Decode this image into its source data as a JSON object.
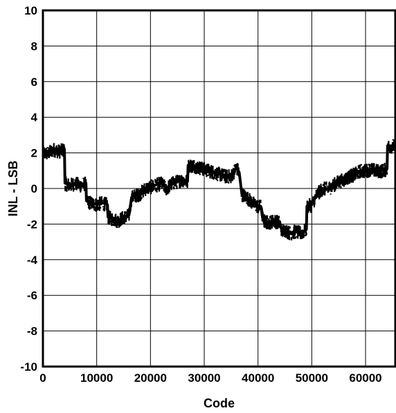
{
  "chart_data": {
    "type": "line",
    "title": "",
    "xlabel": "Code",
    "ylabel": "INL - LSB",
    "xlim": [
      0,
      65535
    ],
    "ylim": [
      -10,
      10
    ],
    "grid": true,
    "x_ticks": [
      0,
      10000,
      20000,
      30000,
      40000,
      50000,
      60000
    ],
    "x_tick_labels": [
      "0",
      "10000",
      "20000",
      "30000",
      "40000",
      "50000",
      "60000"
    ],
    "y_ticks": [
      -10,
      -8,
      -6,
      -4,
      -2,
      0,
      2,
      4,
      6,
      8,
      10
    ],
    "y_tick_labels": [
      "-10",
      "-8",
      "-6",
      "-4",
      "-2",
      "0",
      "2",
      "4",
      "6",
      "8",
      "10"
    ],
    "series": [
      {
        "band_halfwidth": 0.4,
        "x": [
          0,
          1000,
          2000,
          3000,
          4000,
          4100,
          5000,
          6000,
          7000,
          8000,
          8100,
          9000,
          10000,
          11000,
          12000,
          12100,
          13000,
          14000,
          15000,
          16000,
          16500,
          17000,
          18000,
          19000,
          20000,
          21000,
          22000,
          23000,
          24000,
          25000,
          26000,
          26900,
          27000,
          28000,
          29000,
          30000,
          31000,
          32000,
          33000,
          34000,
          35000,
          36000,
          36500,
          37000,
          38000,
          39000,
          40000,
          40500,
          41000,
          42000,
          43000,
          44000,
          44500,
          45000,
          46000,
          47000,
          48000,
          49000,
          49100,
          50000,
          51000,
          52000,
          53000,
          54000,
          55000,
          56000,
          57000,
          58000,
          59000,
          60000,
          61000,
          62000,
          63000,
          64000,
          64100,
          65535
        ],
        "y": [
          2.0,
          2.0,
          2.2,
          2.1,
          2.2,
          0.3,
          0.2,
          0.3,
          0.2,
          0.3,
          -0.7,
          -0.8,
          -0.9,
          -0.8,
          -0.9,
          -1.6,
          -1.7,
          -1.8,
          -1.6,
          -1.5,
          -0.5,
          -0.4,
          -0.3,
          0.0,
          0.1,
          0.2,
          0.3,
          0.0,
          0.3,
          0.4,
          0.5,
          0.4,
          1.3,
          1.3,
          1.2,
          1.1,
          1.0,
          0.9,
          0.8,
          0.7,
          0.7,
          1.2,
          0.9,
          -0.3,
          -0.5,
          -0.8,
          -1.0,
          -1.0,
          -1.8,
          -1.9,
          -1.8,
          -1.9,
          -2.4,
          -2.3,
          -2.5,
          -2.4,
          -2.5,
          -2.3,
          -1.0,
          -0.9,
          -0.3,
          0.0,
          0.0,
          0.2,
          0.4,
          0.5,
          0.7,
          0.8,
          1.0,
          1.0,
          1.1,
          1.0,
          1.0,
          1.1,
          2.4,
          2.4
        ]
      }
    ]
  }
}
